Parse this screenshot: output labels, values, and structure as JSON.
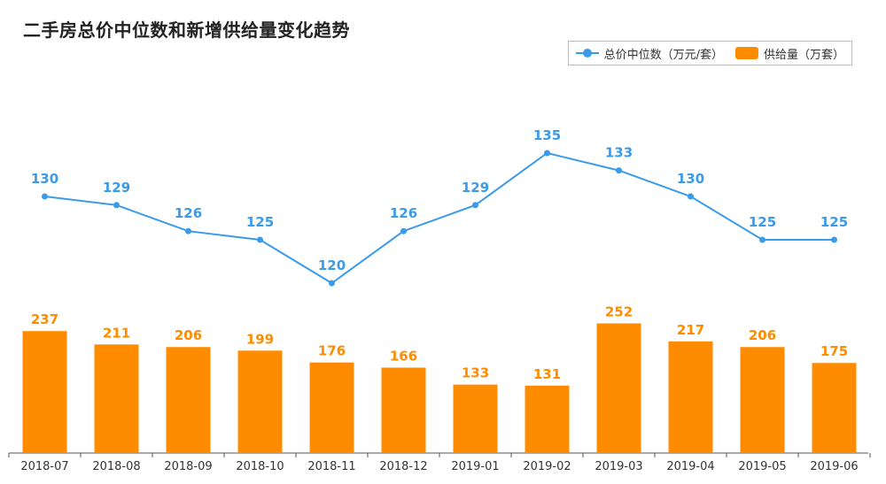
{
  "title": "二手房总价中位数和新增供给量变化趋势",
  "colors": {
    "line": "#3a9bea",
    "bar": "#ff8c00",
    "axis": "#555555"
  },
  "chart_data": {
    "type": "bar+line",
    "title": "二手房总价中位数和新增供给量变化趋势",
    "legend_position": "top-right",
    "grid": false,
    "categories": [
      "2018-07",
      "2018-08",
      "2018-09",
      "2018-10",
      "2018-11",
      "2018-12",
      "2019-01",
      "2019-02",
      "2019-03",
      "2019-04",
      "2019-05",
      "2019-06"
    ],
    "series": [
      {
        "name": "总价中位数（万元/套）",
        "type": "line",
        "values": [
          130,
          129,
          126,
          125,
          120,
          126,
          129,
          135,
          133,
          130,
          125,
          125
        ]
      },
      {
        "name": "供给量（万套）",
        "type": "bar",
        "values": [
          237,
          211,
          206,
          199,
          176,
          166,
          133,
          131,
          252,
          217,
          206,
          175
        ]
      }
    ]
  }
}
